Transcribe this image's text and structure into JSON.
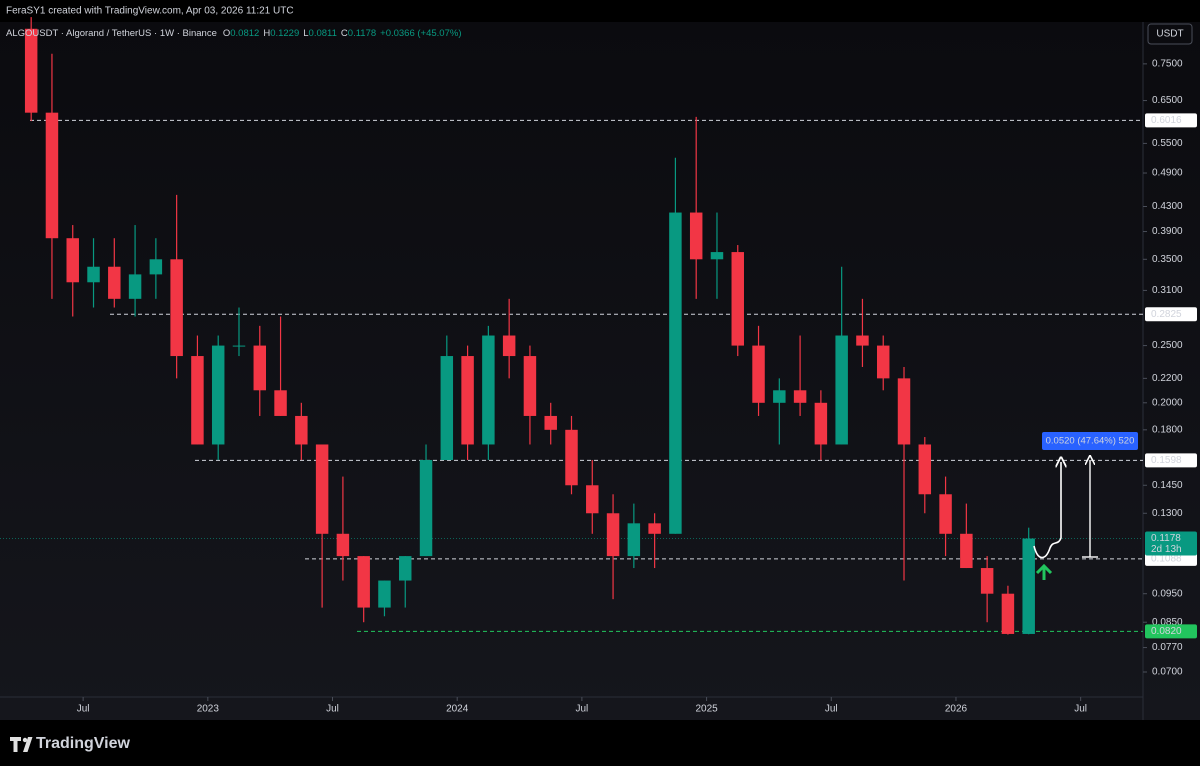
{
  "header": {
    "author_line": "FeraSY1 created with TradingView.com, Apr 03, 2026 11:21 UTC",
    "symbol": "ALGOUSDT · Algorand / TetherUS · 1W · Binance",
    "ohlc": [
      {
        "key": "O",
        "value": "0.0812"
      },
      {
        "key": "H",
        "value": "0.1229"
      },
      {
        "key": "L",
        "value": "0.0811"
      },
      {
        "key": "C",
        "value": "0.1178"
      }
    ],
    "change": "+0.0366 (+45.07%)",
    "currency": "USDT"
  },
  "footer": {
    "brand": "TradingView"
  },
  "chart_data": {
    "type": "candlestick",
    "log_scale": true,
    "up_color": "#089981",
    "down_color": "#f23645",
    "x": [
      "2022-04",
      "2022-05",
      "2022-06",
      "2022-07",
      "2022-08",
      "2022-09",
      "2022-10",
      "2022-11",
      "2022-12",
      "2023-01",
      "2023-02",
      "2023-03",
      "2023-04",
      "2023-05",
      "2023-06",
      "2023-07",
      "2023-08",
      "2023-09",
      "2023-10",
      "2023-11",
      "2023-12",
      "2024-01",
      "2024-02",
      "2024-03",
      "2024-04",
      "2024-05",
      "2024-06",
      "2024-07",
      "2024-08",
      "2024-09",
      "2024-10",
      "2024-11",
      "2024-12",
      "2025-01",
      "2025-02",
      "2025-03",
      "2025-04",
      "2025-05",
      "2025-06",
      "2025-07",
      "2025-08",
      "2025-09",
      "2025-10",
      "2025-11",
      "2025-12",
      "2026-01",
      "2026-02",
      "2026-03",
      "2026-04"
    ],
    "open": [
      0.86,
      0.62,
      0.38,
      0.32,
      0.34,
      0.3,
      0.33,
      0.35,
      0.24,
      0.17,
      0.25,
      0.25,
      0.21,
      0.19,
      0.17,
      0.12,
      0.11,
      0.09,
      0.1,
      0.11,
      0.16,
      0.24,
      0.17,
      0.26,
      0.24,
      0.19,
      0.18,
      0.145,
      0.13,
      0.11,
      0.125,
      0.12,
      0.42,
      0.35,
      0.36,
      0.25,
      0.2,
      0.21,
      0.2,
      0.17,
      0.26,
      0.25,
      0.22,
      0.17,
      0.14,
      0.12,
      0.105,
      0.095,
      0.0812
    ],
    "high": [
      0.9,
      0.78,
      0.4,
      0.38,
      0.38,
      0.4,
      0.38,
      0.45,
      0.26,
      0.26,
      0.29,
      0.27,
      0.28,
      0.2,
      0.17,
      0.15,
      0.11,
      0.1,
      0.11,
      0.17,
      0.26,
      0.25,
      0.27,
      0.3,
      0.25,
      0.2,
      0.19,
      0.16,
      0.14,
      0.135,
      0.13,
      0.52,
      0.61,
      0.42,
      0.37,
      0.27,
      0.22,
      0.26,
      0.21,
      0.34,
      0.3,
      0.26,
      0.23,
      0.175,
      0.15,
      0.135,
      0.11,
      0.098,
      0.1229
    ],
    "low": [
      0.6,
      0.3,
      0.28,
      0.29,
      0.29,
      0.28,
      0.3,
      0.22,
      0.17,
      0.16,
      0.24,
      0.19,
      0.19,
      0.16,
      0.09,
      0.1,
      0.085,
      0.087,
      0.09,
      0.11,
      0.16,
      0.16,
      0.16,
      0.22,
      0.17,
      0.17,
      0.14,
      0.12,
      0.093,
      0.105,
      0.105,
      0.12,
      0.3,
      0.3,
      0.24,
      0.19,
      0.17,
      0.19,
      0.16,
      0.17,
      0.23,
      0.21,
      0.1,
      0.13,
      0.11,
      0.105,
      0.085,
      0.081,
      0.0811
    ],
    "close": [
      0.62,
      0.38,
      0.32,
      0.34,
      0.3,
      0.33,
      0.35,
      0.24,
      0.17,
      0.25,
      0.25,
      0.21,
      0.19,
      0.17,
      0.12,
      0.11,
      0.09,
      0.1,
      0.11,
      0.16,
      0.24,
      0.17,
      0.26,
      0.24,
      0.19,
      0.18,
      0.145,
      0.13,
      0.11,
      0.125,
      0.12,
      0.42,
      0.35,
      0.36,
      0.25,
      0.2,
      0.21,
      0.2,
      0.17,
      0.26,
      0.25,
      0.22,
      0.17,
      0.14,
      0.12,
      0.105,
      0.095,
      0.0812,
      0.1178
    ],
    "xlim": [
      "2022-03",
      "2026-10"
    ],
    "xticks": [
      {
        "value": "2022-07",
        "label": "Jul"
      },
      {
        "value": "2023-01",
        "label": "2023"
      },
      {
        "value": "2023-07",
        "label": "Jul"
      },
      {
        "value": "2024-01",
        "label": "2024"
      },
      {
        "value": "2024-07",
        "label": "Jul"
      },
      {
        "value": "2025-01",
        "label": "2025"
      },
      {
        "value": "2025-07",
        "label": "Jul"
      },
      {
        "value": "2026-01",
        "label": "2026"
      },
      {
        "value": "2026-07",
        "label": "Jul"
      }
    ],
    "ylim": [
      0.0635,
      0.883
    ],
    "yticks": [
      {
        "value": 0.75,
        "label": "0.7500"
      },
      {
        "value": 0.65,
        "label": "0.6500"
      },
      {
        "value": 0.55,
        "label": "0.5500"
      },
      {
        "value": 0.49,
        "label": "0.4900"
      },
      {
        "value": 0.43,
        "label": "0.4300"
      },
      {
        "value": 0.39,
        "label": "0.3900"
      },
      {
        "value": 0.35,
        "label": "0.3500"
      },
      {
        "value": 0.31,
        "label": "0.3100"
      },
      {
        "value": 0.25,
        "label": "0.2500"
      },
      {
        "value": 0.22,
        "label": "0.2200"
      },
      {
        "value": 0.2,
        "label": "0.2000"
      },
      {
        "value": 0.18,
        "label": "0.1800"
      },
      {
        "value": 0.145,
        "label": "0.1450"
      },
      {
        "value": 0.13,
        "label": "0.1300"
      },
      {
        "value": 0.095,
        "label": "0.0950"
      },
      {
        "value": 0.085,
        "label": "0.0850"
      },
      {
        "value": 0.077,
        "label": "0.0770"
      },
      {
        "value": 0.07,
        "label": "0.0700"
      }
    ],
    "levels": [
      {
        "value": 0.6016,
        "label": "0.6016",
        "color": "#d1d4dc"
      },
      {
        "value": 0.2825,
        "label": "0.2825",
        "color": "#d1d4dc"
      },
      {
        "value": 0.1598,
        "label": "0.1598",
        "color": "#d1d4dc"
      },
      {
        "value": 0.1088,
        "label": "0.1088",
        "color": "#d1d4dc"
      },
      {
        "value": 0.082,
        "label": "0.0820",
        "color": "#22c55e"
      }
    ],
    "last_price": {
      "value": 0.1178,
      "label": "0.1178"
    },
    "countdown": "2d 13h",
    "measure": "0.0520 (47.64%) 520"
  }
}
